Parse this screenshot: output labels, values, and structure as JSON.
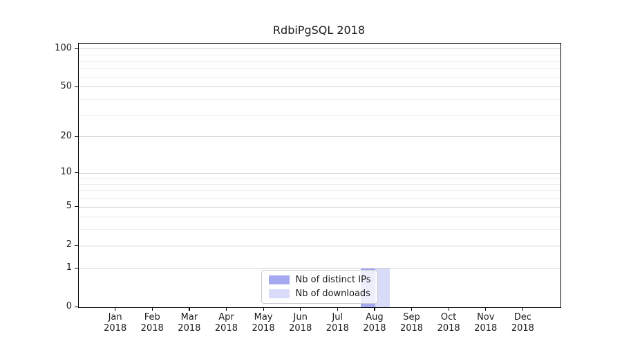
{
  "title": "RdbiPgSQL 2018",
  "chart_data": {
    "type": "bar",
    "title": "RdbiPgSQL 2018",
    "categories": [
      "Jan 2018",
      "Feb 2018",
      "Mar 2018",
      "Apr 2018",
      "May 2018",
      "Jun 2018",
      "Jul 2018",
      "Aug 2018",
      "Sep 2018",
      "Oct 2018",
      "Nov 2018",
      "Dec 2018"
    ],
    "x_tick_line1": [
      "Jan",
      "Feb",
      "Mar",
      "Apr",
      "May",
      "Jun",
      "Jul",
      "Aug",
      "Sep",
      "Oct",
      "Nov",
      "Dec"
    ],
    "x_tick_line2": "2018",
    "series": [
      {
        "name": "Nb of distinct IPs",
        "color": "#a6a9f0",
        "values": [
          0,
          0,
          0,
          0,
          0,
          0,
          0,
          1,
          0,
          0,
          0,
          0
        ]
      },
      {
        "name": "Nb of downloads",
        "color": "#d9dbf8",
        "values": [
          0,
          0,
          0,
          0,
          0,
          0,
          0,
          1,
          0,
          0,
          0,
          0
        ]
      }
    ],
    "y_scale": "log1p",
    "y_major_ticks": [
      0,
      1,
      2,
      5,
      10,
      20,
      50,
      100
    ],
    "y_minor_gridlines": [
      3,
      4,
      6,
      7,
      8,
      9,
      30,
      40,
      60,
      70,
      80,
      90
    ],
    "y_max": 110,
    "xlabel": "",
    "ylabel": "",
    "grid": "horizontal",
    "legend": {
      "position": "lower center"
    },
    "colors": {
      "major_grid": "#d2d2d2",
      "minor_grid": "#ececec",
      "axis": "#000000",
      "text": "#1a1a1a"
    }
  }
}
